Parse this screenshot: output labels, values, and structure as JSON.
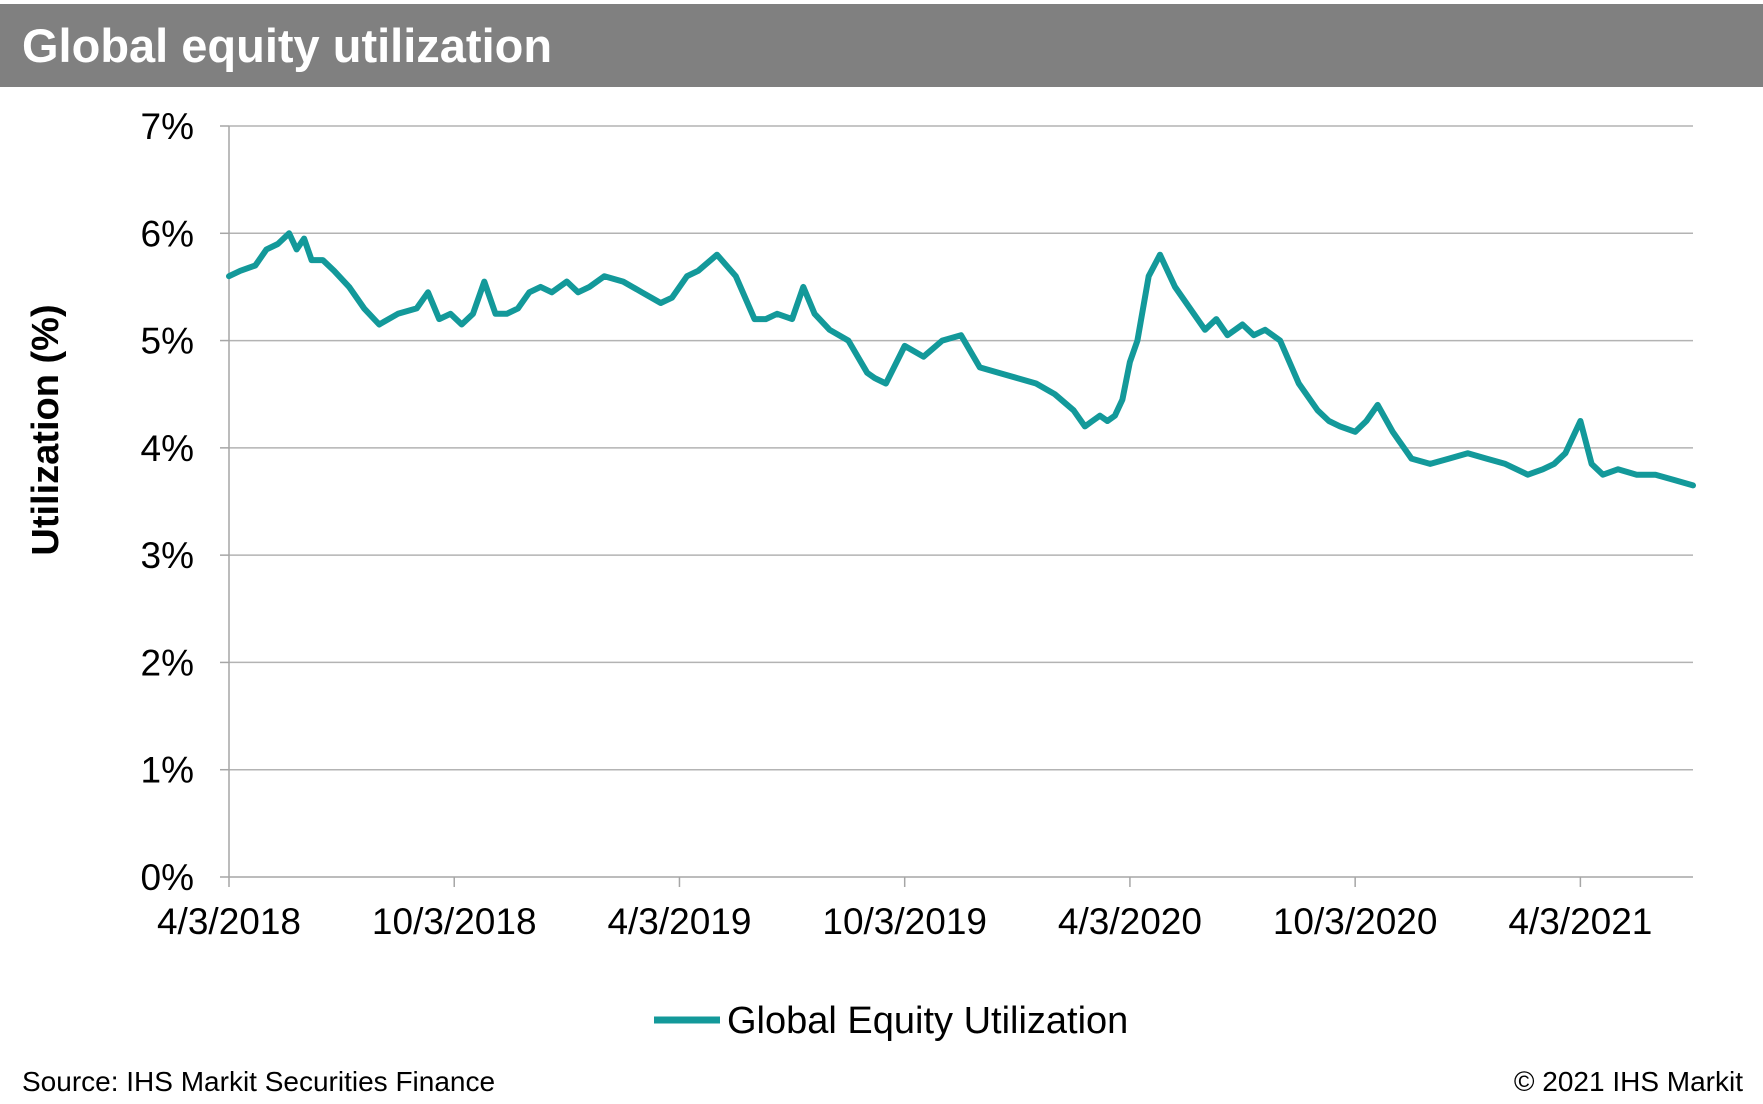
{
  "header": {
    "title": "Global equity utilization"
  },
  "footer": {
    "source": "Source: IHS Markit Securities Finance",
    "copyright": "© 2021 IHS Markit"
  },
  "colors": {
    "header_bg": "#808080",
    "series": "#13999A",
    "grid": "#b3b3b3",
    "axis": "#a6a6a6"
  },
  "chart_data": {
    "type": "line",
    "title": "Global equity utilization",
    "xlabel": "",
    "ylabel": "Utilization (%)",
    "ylim": [
      0,
      7
    ],
    "yticks": [
      0,
      1,
      2,
      3,
      4,
      5,
      6,
      7
    ],
    "ytick_labels": [
      "0%",
      "1%",
      "2%",
      "3%",
      "4%",
      "5%",
      "6%",
      "7%"
    ],
    "xtick_labels": [
      "4/3/2018",
      "10/3/2018",
      "4/3/2019",
      "10/3/2019",
      "4/3/2020",
      "10/3/2020",
      "4/3/2021"
    ],
    "xtick_months": [
      0,
      6,
      12,
      18,
      24,
      30,
      36
    ],
    "xlim_months": [
      0,
      39
    ],
    "grid": true,
    "legend_position": "bottom-center",
    "series": [
      {
        "name": "Global Equity Utilization",
        "x_unit": "months since 4/3/2018",
        "x": [
          0,
          0.3,
          0.7,
          1.0,
          1.3,
          1.6,
          1.8,
          2.0,
          2.2,
          2.5,
          2.8,
          3.2,
          3.6,
          4.0,
          4.5,
          5.0,
          5.3,
          5.6,
          5.9,
          6.2,
          6.5,
          6.8,
          7.1,
          7.4,
          7.7,
          8.0,
          8.3,
          8.6,
          9.0,
          9.3,
          9.6,
          10.0,
          10.5,
          11.0,
          11.5,
          11.8,
          12.0,
          12.2,
          12.5,
          13.0,
          13.5,
          14.0,
          14.3,
          14.6,
          15.0,
          15.3,
          15.6,
          16.0,
          16.5,
          17.0,
          17.2,
          17.5,
          18.0,
          18.5,
          19.0,
          19.5,
          20.0,
          20.5,
          21.0,
          21.5,
          22.0,
          22.5,
          22.8,
          23.0,
          23.2,
          23.4,
          23.6,
          23.8,
          24.0,
          24.2,
          24.5,
          24.8,
          25.2,
          25.6,
          26.0,
          26.3,
          26.6,
          27.0,
          27.3,
          27.6,
          28.0,
          28.5,
          29.0,
          29.3,
          29.6,
          30.0,
          30.3,
          30.6,
          31.0,
          31.5,
          32.0,
          32.5,
          33.0,
          33.5,
          34.0,
          34.3,
          34.6,
          35.0,
          35.3,
          35.6,
          36.0,
          36.3,
          36.6,
          37.0,
          37.5,
          38.0,
          38.5,
          39.0
        ],
        "values": [
          5.6,
          5.65,
          5.7,
          5.85,
          5.9,
          6.0,
          5.85,
          5.95,
          5.75,
          5.75,
          5.65,
          5.5,
          5.3,
          5.15,
          5.25,
          5.3,
          5.45,
          5.2,
          5.25,
          5.15,
          5.25,
          5.55,
          5.25,
          5.25,
          5.3,
          5.45,
          5.5,
          5.45,
          5.55,
          5.45,
          5.5,
          5.6,
          5.55,
          5.45,
          5.35,
          5.4,
          5.5,
          5.6,
          5.65,
          5.8,
          5.6,
          5.2,
          5.2,
          5.25,
          5.2,
          5.5,
          5.25,
          5.1,
          5.0,
          4.7,
          4.65,
          4.6,
          4.95,
          4.85,
          5.0,
          5.05,
          4.75,
          4.7,
          4.65,
          4.6,
          4.5,
          4.35,
          4.2,
          4.25,
          4.3,
          4.25,
          4.3,
          4.45,
          4.8,
          5.0,
          5.6,
          5.8,
          5.5,
          5.3,
          5.1,
          5.2,
          5.05,
          5.15,
          5.05,
          5.1,
          5.0,
          4.6,
          4.35,
          4.25,
          4.2,
          4.15,
          4.25,
          4.4,
          4.15,
          3.9,
          3.85,
          3.9,
          3.95,
          3.9,
          3.85,
          3.8,
          3.75,
          3.8,
          3.85,
          3.95,
          4.25,
          3.85,
          3.75,
          3.8,
          3.75,
          3.75,
          3.7,
          3.65
        ]
      }
    ]
  }
}
